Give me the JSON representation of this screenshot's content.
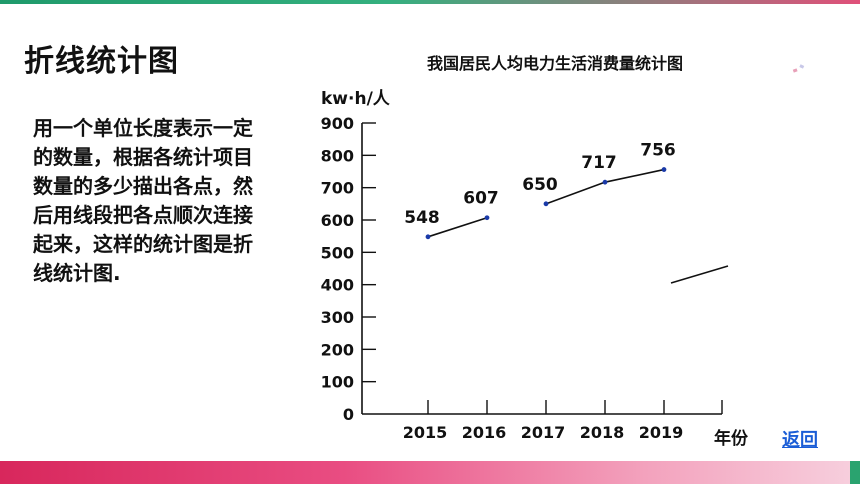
{
  "page": {
    "title": "折线统计图",
    "description": "用一个单位长度表示一定的数量，根据各统计项目数量的多少描出各点，然后用线段把各点顺次连接起来，这样的统计图是折线统计图.",
    "back_label": "返回"
  },
  "colors": {
    "top_bar": "#1f9a6b",
    "bottom_bar": "#d8275c",
    "link": "#1a5dd6",
    "line": "#111111"
  },
  "chart_data": {
    "type": "line",
    "title": "我国居民人均电力生活消费量统计图",
    "ylabel": "kw·h/人",
    "xlabel": "年份",
    "categories": [
      "2015",
      "2016",
      "2017",
      "2018",
      "2019"
    ],
    "series": [
      {
        "values": [
          548,
          607,
          650,
          717,
          756
        ]
      }
    ],
    "segments": [
      [
        0,
        1
      ],
      [
        2,
        3,
        4
      ]
    ],
    "ylim": [
      0,
      900
    ],
    "yticks": [
      0,
      100,
      200,
      300,
      400,
      500,
      600,
      700,
      800,
      900
    ],
    "grid": false
  }
}
